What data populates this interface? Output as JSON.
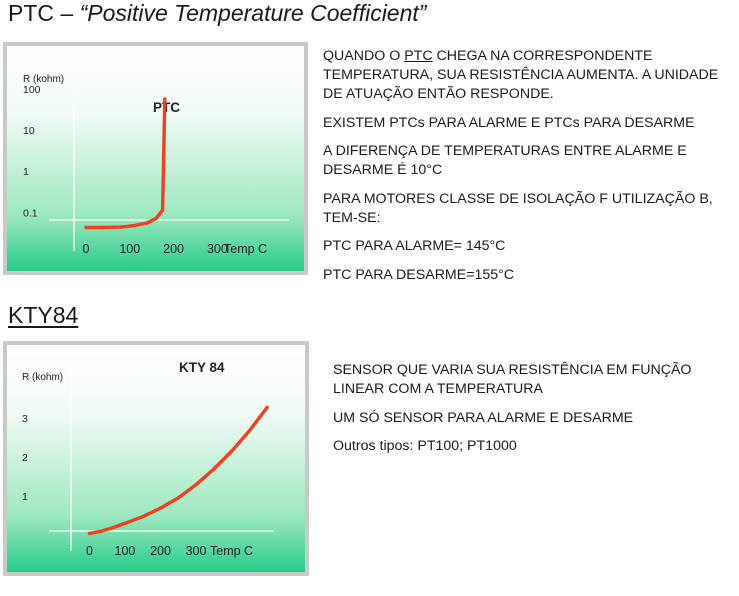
{
  "ptc_section": {
    "title_prefix": "PTC – ",
    "title_emph": "“Positive Temperature Coefficient”",
    "paragraph_1_a": "QUANDO O ",
    "paragraph_1_u": "PTC",
    "paragraph_1_b": " CHEGA NA CORRESPONDENTE TEMPERATURA, SUA RESISTÊNCIA  AUMENTA. A UNIDADE DE ATUAÇÃO ENTÃO RESPONDE.",
    "paragraph_2": "EXISTEM PTCs PARA ALARME E PTCs PARA DESARME",
    "paragraph_3": "A DIFERENÇA DE TEMPERATURAS ENTRE ALARME E DESARME É 10°C",
    "paragraph_4": "PARA MOTORES CLASSE DE ISOLAÇÃO F UTILIZAÇÃO B, TEM-SE:",
    "paragraph_5": "PTC PARA ALARME= 145°C",
    "paragraph_6": "PTC PARA DESARME=155°C"
  },
  "kty_section": {
    "title": "KTY84",
    "paragraph_1": "SENSOR QUE VARIA SUA RESISTÊNCIA EM FUNÇÃO LINEAR COM A TEMPERATURA",
    "paragraph_2": "UM SÓ SENSOR PARA ALARME E DESARME",
    "paragraph_3": "Outros tipos: PT100; PT1000"
  },
  "chart_data": [
    {
      "type": "line",
      "title": "PTC",
      "ylabel": "R (kohm)",
      "xlabel": "Temp C",
      "y_scale": "log",
      "x_ticks": [
        "0",
        "100",
        "200",
        "300"
      ],
      "y_ticks": [
        "100",
        "10",
        "1",
        "0.1"
      ],
      "xlim": [
        -25,
        420
      ],
      "ylim": [
        0.02,
        100
      ],
      "series": [
        {
          "color": "#f0401e",
          "x": [
            0,
            40,
            80,
            110,
            140,
            160,
            175,
            180
          ],
          "y": [
            0.045,
            0.045,
            0.046,
            0.05,
            0.058,
            0.075,
            0.12,
            60
          ]
        }
      ],
      "grid": false
    },
    {
      "type": "line",
      "title": "KTY 84",
      "ylabel": "R (kohm)",
      "xlabel": "Temp C",
      "x_ticks": [
        "0",
        "100",
        "200",
        "300"
      ],
      "y_ticks": [
        "3",
        "2",
        "1"
      ],
      "xlim": [
        -35,
        525
      ],
      "ylim": [
        -0.15,
        3.8
      ],
      "series": [
        {
          "color": "#f0401e",
          "x": [
            0,
            30,
            60,
            100,
            150,
            200,
            250,
            300,
            350,
            400,
            450,
            500
          ],
          "y": [
            0.07,
            0.12,
            0.2,
            0.33,
            0.5,
            0.72,
            0.98,
            1.32,
            1.72,
            2.18,
            2.7,
            3.3
          ]
        }
      ],
      "grid": false
    }
  ]
}
